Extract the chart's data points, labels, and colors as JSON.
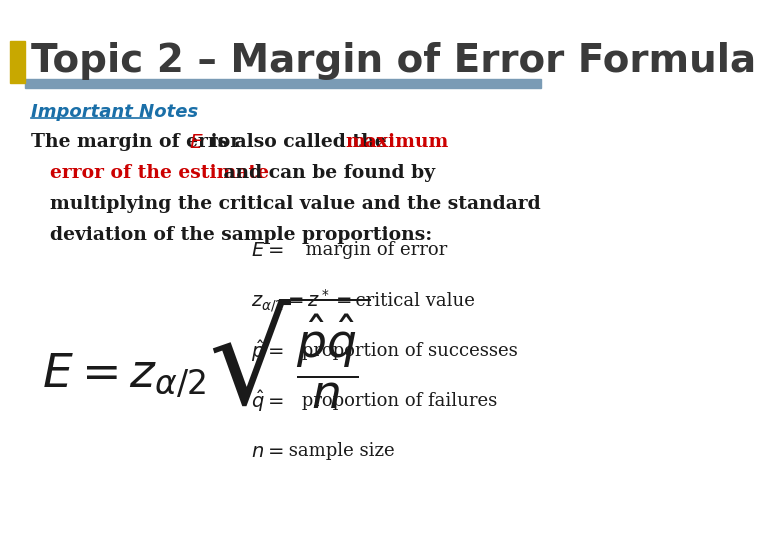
{
  "title": "Topic 2 – Margin of Error Formula",
  "title_color": "#3a3a3a",
  "title_fontsize": 28,
  "header_bar_color": "#7a9bb5",
  "header_bar_yellow": "#c8a800",
  "important_notes_text": "Important Notes",
  "important_notes_color": "#1a6fa8",
  "important_notes_fontsize": 13,
  "body_fontsize": 13.5,
  "body_color": "#1a1a1a",
  "red_color": "#cc0000",
  "background_color": "#ffffff",
  "legend_fontsize": 13
}
